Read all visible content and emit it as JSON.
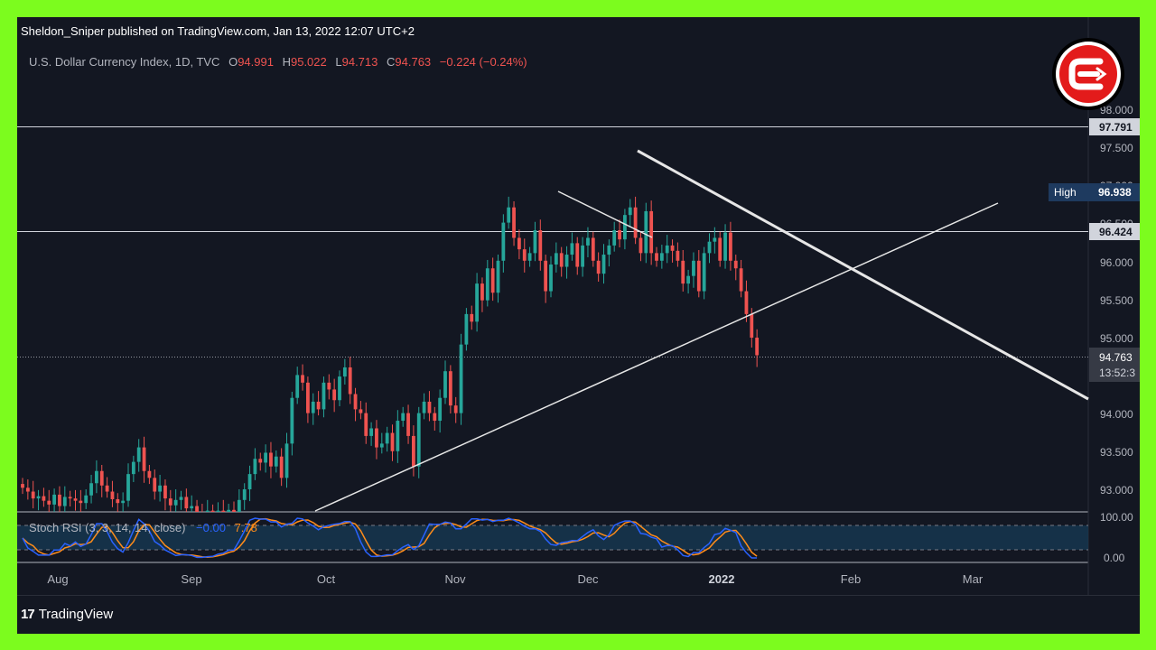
{
  "header": {
    "publisher": "Sheldon_Sniper published on TradingView.com, Jan 13, 2022 12:07 UTC+2"
  },
  "legend": {
    "symbol": "U.S. Dollar Currency Index, 1D, TVC",
    "o_label": "O",
    "o_value": "94.991",
    "h_label": "H",
    "h_value": "95.022",
    "l_label": "L",
    "l_value": "94.713",
    "c_label": "C",
    "c_value": "94.763",
    "change": "−0.224 (−0.24%)"
  },
  "indicator": {
    "label": "Stoch RSI (3, 3, 14, 14, close)",
    "k_value": "−0.00",
    "d_value": "7.78"
  },
  "price_axis": {
    "ticks": [
      "98.000",
      "97.500",
      "97.000",
      "96.500",
      "96.000",
      "95.500",
      "95.000",
      "94.000",
      "93.500",
      "93.000"
    ],
    "tags": {
      "level_top": "97.791",
      "high_label": "High",
      "high_value": "96.938",
      "level_mid": "96.424",
      "last_price": "94.763",
      "countdown": "13:52:3"
    },
    "osc_ticks": [
      "100.00",
      "0.00"
    ]
  },
  "time_axis": {
    "labels": [
      "Aug",
      "Sep",
      "Oct",
      "Nov",
      "Dec",
      "2022",
      "Feb",
      "Mar"
    ]
  },
  "footer": {
    "brand": "TradingView",
    "brand_mark": "17"
  },
  "colors": {
    "border": "#7CFC1E",
    "background": "#131722",
    "up": "#26a69a",
    "down": "#ef5350",
    "k_line": "#2962ff",
    "d_line": "#ff8c1a",
    "badge": "#e31b1b"
  },
  "chart_data": [
    {
      "type": "candlestick",
      "title": "U.S. Dollar Currency Index, 1D, TVC",
      "x_axis_labels": [
        "Aug",
        "Sep",
        "Oct",
        "Nov",
        "Dec",
        "2022",
        "Feb",
        "Mar"
      ],
      "ylim": [
        92.7,
        98.5
      ],
      "horizontal_levels": [
        97.791,
        96.424
      ],
      "last_price": 94.763,
      "session_high": 96.938,
      "ohlc_last": {
        "open": 94.991,
        "high": 95.022,
        "low": 94.713,
        "close": 94.763
      },
      "candles_close_approx": [
        93.02,
        92.97,
        92.88,
        92.91,
        92.85,
        92.8,
        92.93,
        92.78,
        92.9,
        92.88,
        92.85,
        92.82,
        92.92,
        93.08,
        93.24,
        93.05,
        92.97,
        92.87,
        92.82,
        92.85,
        93.2,
        93.36,
        93.55,
        93.24,
        93.15,
        92.97,
        93.05,
        92.88,
        92.79,
        92.86,
        92.9,
        92.75,
        92.78,
        92.7,
        92.63,
        92.72,
        92.64,
        92.72,
        92.7,
        92.73,
        92.68,
        92.86,
        93.0,
        93.2,
        93.4,
        93.35,
        93.48,
        93.3,
        93.43,
        93.15,
        93.6,
        94.2,
        94.5,
        94.4,
        94.0,
        94.15,
        94.05,
        94.4,
        94.31,
        94.17,
        94.48,
        94.6,
        94.25,
        94.05,
        94.0,
        93.7,
        93.8,
        93.55,
        93.6,
        93.74,
        93.5,
        93.9,
        94.0,
        93.7,
        93.3,
        94.0,
        94.15,
        94.0,
        93.9,
        94.2,
        94.55,
        94.1,
        94.0,
        94.9,
        95.3,
        95.2,
        95.7,
        95.48,
        95.9,
        95.58,
        96.0,
        96.5,
        96.7,
        96.3,
        96.15,
        96.0,
        96.1,
        96.4,
        96.0,
        95.6,
        95.95,
        96.1,
        95.92,
        96.08,
        96.23,
        95.92,
        96.2,
        96.3,
        96.0,
        95.83,
        96.08,
        96.2,
        96.4,
        96.28,
        96.6,
        96.7,
        96.3,
        96.1,
        96.65,
        96.1,
        96.0,
        96.1,
        96.2,
        96.13,
        96.0,
        95.7,
        95.8,
        96.0,
        95.6,
        96.1,
        96.25,
        96.3,
        96.0,
        96.37,
        96.0,
        95.9,
        95.6,
        95.3,
        94.99,
        94.76
      ],
      "trendlines": [
        {
          "from": {
            "x": "Oct",
            "y": 92.7
          },
          "to": {
            "x": "Feb",
            "y": 96.7
          }
        },
        {
          "from": {
            "x": "Nov (late)",
            "y": 96.95
          },
          "to": {
            "x": "Dec (mid)",
            "y": 96.4
          }
        },
        {
          "from": {
            "x": "Dec (early)",
            "y": 97.55
          },
          "to": {
            "x": "Mar (late)",
            "y": 94.2
          }
        }
      ]
    },
    {
      "type": "line",
      "title": "Stoch RSI (3, 3, 14, 14, close)",
      "ylim": [
        0,
        100
      ],
      "series": [
        {
          "name": "K",
          "last": -0.0
        },
        {
          "name": "D",
          "last": 7.78
        }
      ],
      "bands": [
        80,
        20
      ]
    }
  ]
}
